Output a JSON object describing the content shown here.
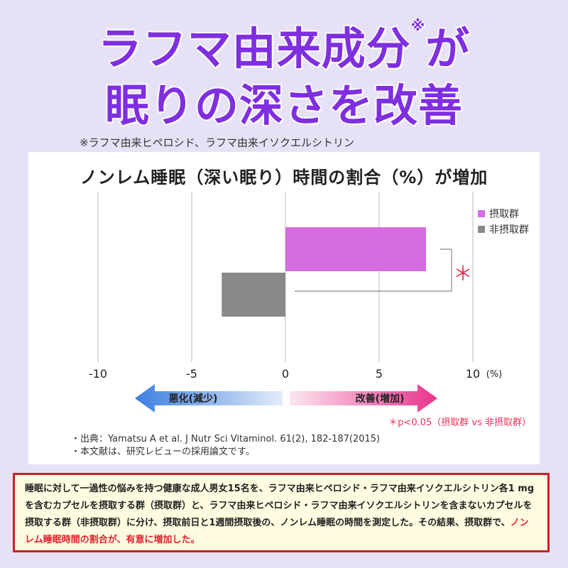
{
  "headline": {
    "line1": "ラフマ由来成分",
    "line1_mark": "※",
    "line1_end": "が",
    "line2": "眠りの深さを改善"
  },
  "top_note": "※ラフマ由来ヒペロシド、ラフマ由来イソクエルシトリン",
  "chart_data": {
    "type": "bar",
    "orientation": "horizontal",
    "title": "ノンレム睡眠（深い眠り）時間の割合（%）が増加",
    "categories": [
      "摂取群",
      "非摂取群"
    ],
    "values": [
      7.5,
      -3.4
    ],
    "colors": [
      "#d56ce0",
      "#8a8a8a"
    ],
    "xlim": [
      -10,
      10
    ],
    "xticks": [
      "-10",
      "-5",
      "0",
      "5",
      "10"
    ],
    "xunit": "(%)",
    "legend_position": "top-right",
    "grid": true,
    "significance_mark": "＊",
    "arrow_left_label": "悪化(減少)",
    "arrow_right_label": "改善(増加)",
    "p_note": "＊p<0.05（摂取群 vs 非摂取群）"
  },
  "sources": [
    "・出典：Yamatsu A et al. J Nutr Sci Vitaminol. 61(2), 182-187(2015)",
    "・本文献は、研究レビューの採用論文です。"
  ],
  "bottom_text": {
    "main": "睡眠に対して一過性の悩みを持つ健康な成人男女15名を、ラフマ由来ヒペロシド・ラフマ由来イソクエルシトリン各1 mgを含むカプセルを摂取する群（摂取群）と、ラフマ由来ヒペロシド・ラフマ由来イソクエルシトリンを含まないカプセルを摂取する群（非摂取群）に分け、摂取前日と1週間摂取後の、ノンレム睡眠の時間を測定した。その結果、摂取群で、",
    "highlight": "ノンレム睡眠時間の割合が、有意に増加した。"
  }
}
